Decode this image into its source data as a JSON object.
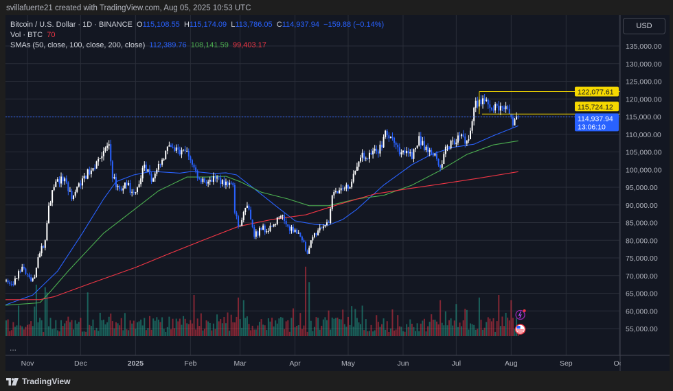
{
  "header": {
    "attribution": "svillafuerte21 created with TradingView.com, Aug 05, 2025 10:53 UTC"
  },
  "legend": {
    "symbol": "Bitcoin / U.S. Dollar · 1D · BINANCE",
    "o_label": "O",
    "open": "115,108.55",
    "h_label": "H",
    "high": "115,174.09",
    "l_label": "L",
    "low": "113,786.05",
    "c_label": "C",
    "close": "114,937.94",
    "change": "−159.88 (−0.14%)",
    "vol_label": "Vol · BTC",
    "vol_value": "70",
    "sma_label": "SMAs (50, close, 100, close, 200, close)",
    "sma50": "112,389.76",
    "sma100": "108,141.59",
    "sma200": "99,403.17"
  },
  "price_axis": {
    "currency_button": "USD",
    "ticks": [
      "135,000.00",
      "130,000.00",
      "125,000.00",
      "120,000.00",
      "115,000.00",
      "110,000.00",
      "105,000.00",
      "100,000.00",
      "95,000.00",
      "90,000.00",
      "85,000.00",
      "80,000.00",
      "75,000.00",
      "70,000.00",
      "65,000.00",
      "60,000.00",
      "55,000.00"
    ],
    "markers": {
      "level_high": "122,077.61",
      "level_low": "115,724.12",
      "last_price": "114,937.94",
      "countdown": "13:06:10"
    }
  },
  "time_axis": {
    "labels": [
      "Nov",
      "Dec",
      "2025",
      "Feb",
      "Mar",
      "Apr",
      "May",
      "Jun",
      "Jul",
      "Aug",
      "Sep",
      "Oct"
    ]
  },
  "more_button": "...",
  "brand": "TradingView",
  "colors": {
    "up": "#ffffff",
    "down": "#2962ff",
    "sma50": "#2962ff",
    "sma100": "#4caf50",
    "sma200": "#f23645",
    "level": "#f5d800",
    "background": "#131722",
    "grid": "#2a2e39"
  },
  "icons": [
    "lightning-event-icon",
    "us-flag-event-icon",
    "tradingview-logo-icon"
  ],
  "chart_data": {
    "type": "candlestick",
    "ylim": [
      52000,
      139000
    ],
    "xlim": [
      "2024-10-19",
      "2025-10-01"
    ],
    "grid": true,
    "close_path": [
      [
        "2024-10-19",
        68400
      ],
      [
        "2024-10-24",
        67500
      ],
      [
        "2024-10-29",
        72500
      ],
      [
        "2024-11-03",
        68500
      ],
      [
        "2024-11-05",
        69500
      ],
      [
        "2024-11-07",
        75200
      ],
      [
        "2024-11-11",
        80000
      ],
      [
        "2024-11-13",
        89800
      ],
      [
        "2024-11-17",
        96600
      ],
      [
        "2024-11-22",
        97500
      ],
      [
        "2024-11-26",
        91700
      ],
      [
        "2024-12-02",
        97500
      ],
      [
        "2024-12-08",
        100400
      ],
      [
        "2024-12-14",
        105300
      ],
      [
        "2024-12-17",
        107200
      ],
      [
        "2024-12-19",
        97500
      ],
      [
        "2024-12-23",
        94600
      ],
      [
        "2024-12-27",
        95600
      ],
      [
        "2024-12-31",
        93600
      ],
      [
        "2025-01-04",
        97500
      ],
      [
        "2025-01-06",
        101400
      ],
      [
        "2025-01-10",
        96600
      ],
      [
        "2025-01-15",
        101400
      ],
      [
        "2025-01-18",
        105300
      ],
      [
        "2025-01-22",
        106300
      ],
      [
        "2025-01-26",
        104300
      ],
      [
        "2025-01-30",
        105300
      ],
      [
        "2025-02-02",
        101400
      ],
      [
        "2025-02-06",
        97500
      ],
      [
        "2025-02-11",
        96600
      ],
      [
        "2025-02-15",
        97500
      ],
      [
        "2025-02-21",
        96600
      ],
      [
        "2025-02-25",
        95600
      ],
      [
        "2025-02-26",
        87800
      ],
      [
        "2025-02-28",
        83900
      ],
      [
        "2025-03-05",
        89800
      ],
      [
        "2025-03-09",
        81000
      ],
      [
        "2025-03-13",
        83000
      ],
      [
        "2025-03-19",
        83900
      ],
      [
        "2025-03-24",
        86800
      ],
      [
        "2025-03-28",
        83900
      ],
      [
        "2025-04-01",
        83000
      ],
      [
        "2025-04-05",
        80000
      ],
      [
        "2025-04-08",
        76200
      ],
      [
        "2025-04-12",
        82000
      ],
      [
        "2025-04-17",
        83900
      ],
      [
        "2025-04-20",
        84900
      ],
      [
        "2025-04-22",
        92700
      ],
      [
        "2025-04-28",
        94600
      ],
      [
        "2025-05-03",
        96600
      ],
      [
        "2025-05-08",
        103400
      ],
      [
        "2025-05-14",
        104300
      ],
      [
        "2025-05-20",
        106300
      ],
      [
        "2025-05-22",
        111000
      ],
      [
        "2025-05-26",
        109000
      ],
      [
        "2025-05-30",
        104300
      ],
      [
        "2025-06-03",
        105300
      ],
      [
        "2025-06-06",
        103000
      ],
      [
        "2025-06-10",
        109500
      ],
      [
        "2025-06-13",
        105500
      ],
      [
        "2025-06-17",
        104500
      ],
      [
        "2025-06-20",
        103000
      ],
      [
        "2025-06-22",
        100500
      ],
      [
        "2025-06-25",
        106500
      ],
      [
        "2025-06-30",
        107200
      ],
      [
        "2025-07-03",
        109500
      ],
      [
        "2025-07-07",
        108200
      ],
      [
        "2025-07-09",
        111000
      ],
      [
        "2025-07-11",
        117500
      ],
      [
        "2025-07-14",
        119800
      ],
      [
        "2025-07-17",
        119500
      ],
      [
        "2025-07-20",
        117500
      ],
      [
        "2025-07-23",
        118500
      ],
      [
        "2025-07-26",
        118000
      ],
      [
        "2025-07-29",
        118000
      ],
      [
        "2025-07-31",
        115800
      ],
      [
        "2025-08-02",
        112500
      ],
      [
        "2025-08-03",
        114200
      ],
      [
        "2025-08-04",
        115100
      ],
      [
        "2025-08-05",
        114937.94
      ]
    ],
    "sma": [
      {
        "name": "50",
        "color": "#2962ff",
        "points": [
          [
            "2024-10-19",
            61600
          ],
          [
            "2024-11-04",
            64500
          ],
          [
            "2024-11-10",
            67400
          ],
          [
            "2024-11-18",
            71300
          ],
          [
            "2024-12-02",
            82000
          ],
          [
            "2024-12-14",
            91700
          ],
          [
            "2024-12-21",
            96600
          ],
          [
            "2024-12-31",
            98500
          ],
          [
            "2025-01-10",
            99500
          ],
          [
            "2025-01-26",
            99000
          ],
          [
            "2025-02-02",
            99500
          ],
          [
            "2025-02-14",
            98900
          ],
          [
            "2025-02-21",
            99100
          ],
          [
            "2025-02-27",
            98500
          ],
          [
            "2025-03-09",
            94600
          ],
          [
            "2025-03-21",
            89800
          ],
          [
            "2025-04-01",
            85500
          ],
          [
            "2025-04-12",
            84500
          ],
          [
            "2025-04-20",
            84300
          ],
          [
            "2025-04-28",
            85900
          ],
          [
            "2025-05-06",
            88800
          ],
          [
            "2025-05-21",
            95600
          ],
          [
            "2025-06-06",
            101400
          ],
          [
            "2025-06-17",
            104300
          ],
          [
            "2025-06-29",
            106300
          ],
          [
            "2025-07-11",
            107200
          ],
          [
            "2025-07-22",
            109600
          ],
          [
            "2025-08-05",
            112389.76
          ]
        ]
      },
      {
        "name": "100",
        "color": "#4caf50",
        "points": [
          [
            "2024-10-19",
            61600
          ],
          [
            "2024-11-08",
            62300
          ],
          [
            "2024-11-14",
            65500
          ],
          [
            "2024-11-24",
            71300
          ],
          [
            "2024-12-14",
            82000
          ],
          [
            "2024-12-29",
            87800
          ],
          [
            "2025-01-14",
            94000
          ],
          [
            "2025-01-30",
            97900
          ],
          [
            "2025-02-10",
            97900
          ],
          [
            "2025-02-21",
            98100
          ],
          [
            "2025-03-01",
            96600
          ],
          [
            "2025-03-13",
            93600
          ],
          [
            "2025-03-28",
            91700
          ],
          [
            "2025-04-09",
            89800
          ],
          [
            "2025-04-20",
            89800
          ],
          [
            "2025-05-06",
            91700
          ],
          [
            "2025-05-21",
            92700
          ],
          [
            "2025-06-06",
            95600
          ],
          [
            "2025-06-21",
            99500
          ],
          [
            "2025-07-07",
            104300
          ],
          [
            "2025-07-22",
            107000
          ],
          [
            "2025-08-05",
            108141.59
          ]
        ]
      },
      {
        "name": "200",
        "color": "#f23645",
        "points": [
          [
            "2024-10-19",
            63200
          ],
          [
            "2024-11-08",
            63200
          ],
          [
            "2024-11-16",
            64000
          ],
          [
            "2024-12-05",
            67500
          ],
          [
            "2025-01-01",
            72300
          ],
          [
            "2025-01-20",
            76200
          ],
          [
            "2025-02-08",
            80000
          ],
          [
            "2025-02-28",
            83900
          ],
          [
            "2025-03-19",
            85900
          ],
          [
            "2025-04-07",
            87200
          ],
          [
            "2025-04-26",
            90200
          ],
          [
            "2025-05-16",
            93100
          ],
          [
            "2025-06-04",
            94600
          ],
          [
            "2025-06-23",
            96000
          ],
          [
            "2025-07-13",
            97500
          ],
          [
            "2025-08-05",
            99403.17
          ]
        ]
      }
    ],
    "levels": {
      "box_start": "2025-07-14",
      "upper": 122077.61,
      "lower": 115724.12,
      "last": 114937.94
    },
    "volume_spikes": [
      [
        "2024-11-06",
        1.0
      ],
      [
        "2024-11-11",
        0.95
      ],
      [
        "2024-11-12",
        0.85
      ],
      [
        "2024-12-05",
        0.85
      ],
      [
        "2025-02-03",
        0.8
      ],
      [
        "2025-02-28",
        0.75
      ],
      [
        "2025-03-03",
        0.7
      ],
      [
        "2025-04-07",
        1.35
      ],
      [
        "2025-04-09",
        1.05
      ],
      [
        "2025-06-22",
        0.7
      ],
      [
        "2025-07-14",
        0.75
      ],
      [
        "2025-07-25",
        0.8
      ],
      [
        "2025-08-01",
        0.7
      ]
    ]
  }
}
